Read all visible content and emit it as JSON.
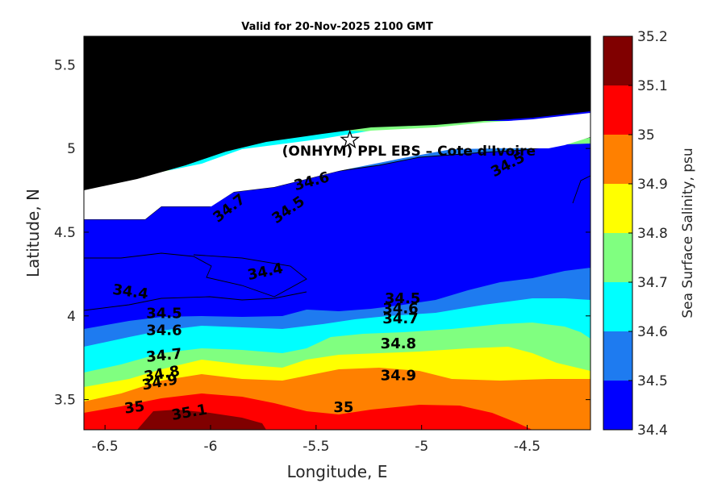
{
  "chart_data": {
    "type": "heatmap",
    "title": "Valid for 20-Nov-2025 2100 GMT",
    "xlabel": "Longitude, E",
    "ylabel": "Latitude, N",
    "xlim": [
      -6.6,
      -4.2
    ],
    "ylim": [
      3.32,
      5.67
    ],
    "xticks": [
      -6.5,
      -6,
      -5.5,
      -5,
      -4.5
    ],
    "xtick_labels": [
      "-6.5",
      "-6",
      "-5.5",
      "-5",
      "-4.5"
    ],
    "yticks": [
      3.5,
      4,
      4.5,
      5,
      5.5
    ],
    "ytick_labels": [
      "3.5",
      "4",
      "4.5",
      "5",
      "5.5"
    ],
    "overlay_label": "(ONHYM) PPL EBS  – Cote d'Ivoire",
    "star_marker": {
      "lon": -5.34,
      "lat": 5.05
    },
    "colorbar": {
      "label": "Sea Surface Salinity, psu",
      "levels": [
        34.4,
        34.5,
        34.6,
        34.7,
        34.8,
        34.9,
        35,
        35.1,
        35.2
      ],
      "tick_labels": [
        "34.4",
        "34.5",
        "34.6",
        "34.7",
        "34.8",
        "34.9",
        "35",
        "35.1",
        "35.2"
      ],
      "colors": [
        "#0000ff",
        "#1e7bf0",
        "#00ffff",
        "#80ff80",
        "#ffff00",
        "#ff8000",
        "#ff0000",
        "#800000"
      ]
    },
    "contour_labels": [
      {
        "text": "34.4",
        "lon": -6.38,
        "lat": 4.14,
        "angle": 8
      },
      {
        "text": "34.4",
        "lon": -5.74,
        "lat": 4.26,
        "angle": -12
      },
      {
        "text": "34.5",
        "lon": -6.22,
        "lat": 4.01,
        "angle": 0
      },
      {
        "text": "34.6",
        "lon": -6.22,
        "lat": 3.91,
        "angle": 0
      },
      {
        "text": "34.7",
        "lon": -6.22,
        "lat": 3.76,
        "angle": -6
      },
      {
        "text": "34.8",
        "lon": -6.23,
        "lat": 3.65,
        "angle": -10
      },
      {
        "text": "34.9",
        "lon": -6.24,
        "lat": 3.6,
        "angle": -10
      },
      {
        "text": "35",
        "lon": -6.36,
        "lat": 3.45,
        "angle": -8
      },
      {
        "text": "35.1",
        "lon": -6.1,
        "lat": 3.42,
        "angle": -10
      },
      {
        "text": "34.5",
        "lon": -5.09,
        "lat": 4.1,
        "angle": 0
      },
      {
        "text": "34.6",
        "lon": -5.1,
        "lat": 4.04,
        "angle": 0
      },
      {
        "text": "34.7",
        "lon": -5.1,
        "lat": 3.98,
        "angle": 0
      },
      {
        "text": "34.8",
        "lon": -5.11,
        "lat": 3.83,
        "angle": 0
      },
      {
        "text": "34.9",
        "lon": -5.11,
        "lat": 3.64,
        "angle": 0
      },
      {
        "text": "35",
        "lon": -5.37,
        "lat": 3.45,
        "angle": 0
      },
      {
        "text": "34.7",
        "lon": -5.91,
        "lat": 4.64,
        "angle": -38
      },
      {
        "text": "34.6",
        "lon": -5.52,
        "lat": 4.8,
        "angle": -15
      },
      {
        "text": "34.5",
        "lon": -5.63,
        "lat": 4.63,
        "angle": -35
      },
      {
        "text": "34.5",
        "lon": -4.59,
        "lat": 4.9,
        "angle": -28
      }
    ]
  }
}
